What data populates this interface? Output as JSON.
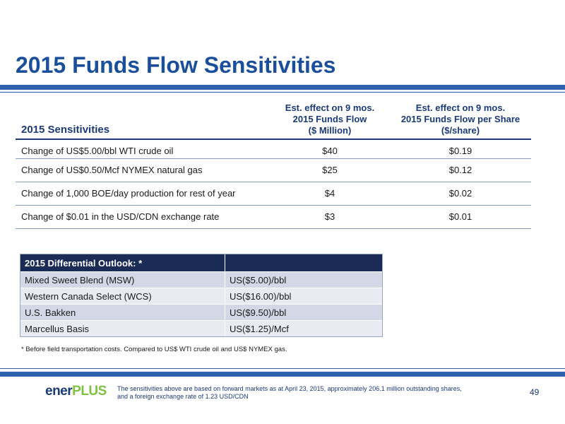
{
  "title": "2015 Funds Flow Sensitivities",
  "sensitivities": {
    "header_label": "2015 Sensitivities",
    "col1_header": [
      "Est. effect on 9 mos.",
      "2015 Funds Flow",
      "($ Million)"
    ],
    "col2_header": [
      "Est. effect on 9 mos.",
      "2015 Funds Flow per Share",
      "($/share)"
    ],
    "rows": [
      {
        "label": "Change of US$5.00/bbl WTI crude oil",
        "v1": "$40",
        "v2": "$0.19"
      },
      {
        "label": "Change of US$0.50/Mcf NYMEX natural gas",
        "v1": "$25",
        "v2": "$0.12"
      },
      {
        "label": "Change of 1,000 BOE/day production for rest of year",
        "v1": "$4",
        "v2": "$0.02"
      },
      {
        "label": "Change of $0.01 in the USD/CDN exchange rate",
        "v1": "$3",
        "v2": "$0.01"
      }
    ]
  },
  "differential": {
    "header": "2015 Differential Outlook: *",
    "rows": [
      {
        "label": "Mixed Sweet Blend (MSW)",
        "value": "US($5.00)/bbl"
      },
      {
        "label": "Western Canada Select (WCS)",
        "value": "US($16.00)/bbl"
      },
      {
        "label": "U.S. Bakken",
        "value": "US($9.50)/bbl"
      },
      {
        "label": "Marcellus Basis",
        "value": "US($1.25)/Mcf"
      }
    ]
  },
  "footnote": "* Before field transportation costs. Compared to US$ WTI crude oil and US$ NYMEX gas.",
  "footer": {
    "logo_part1": "ener",
    "logo_part2": "PLUS",
    "note_line1": "The sensitivities above are based on forward markets as at April 23, 2015, approximately 206.1 million outstanding shares,",
    "note_line2": "and a foreign exchange rate of 1.23 USD/CDN",
    "page_number": "49"
  },
  "colors": {
    "brand_blue": "#1b4f9c",
    "navy": "#1a2b55",
    "logo_green": "#7fc243"
  }
}
